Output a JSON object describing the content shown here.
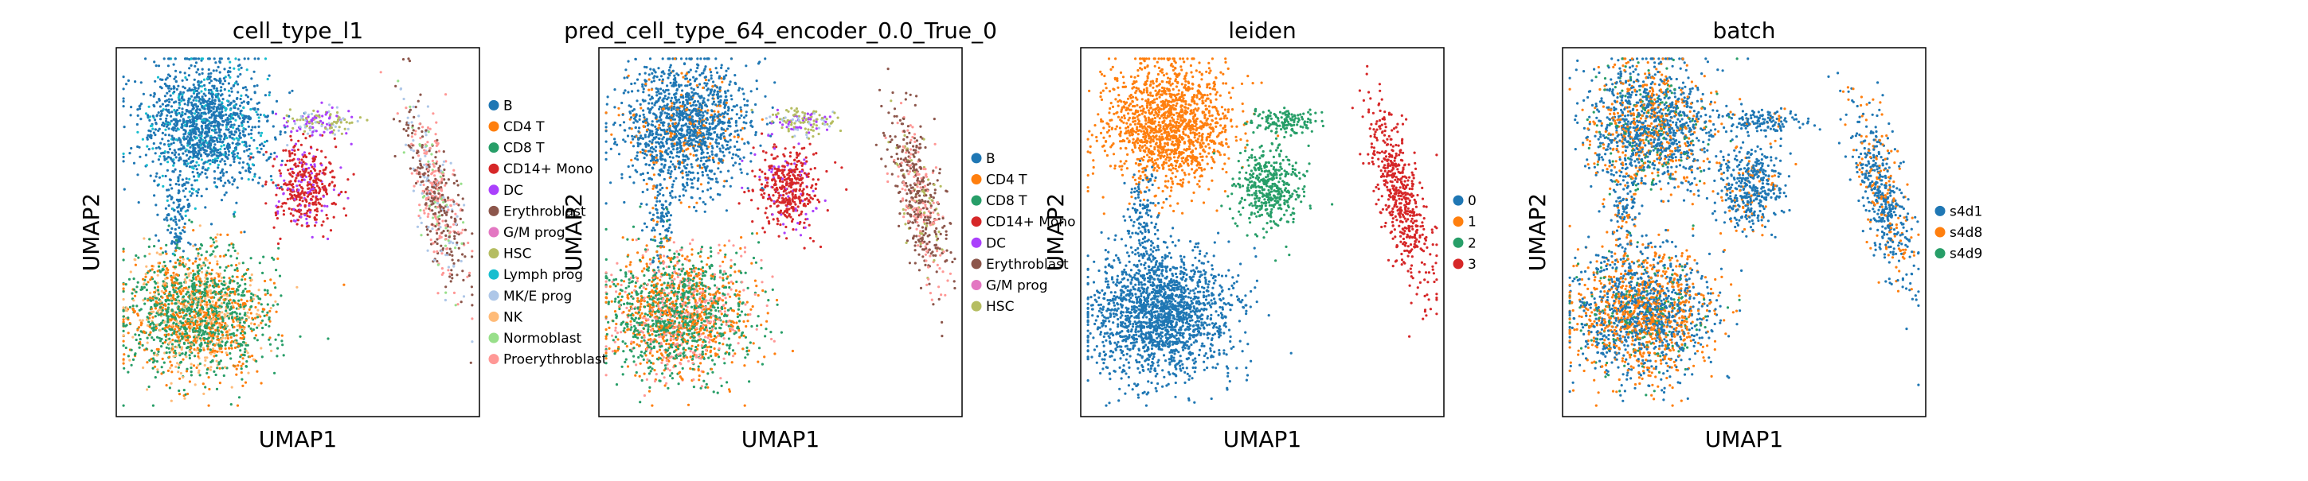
{
  "figure": {
    "panels_count": 4
  },
  "chart_data": [
    {
      "type": "scatter",
      "title": "cell_type_l1",
      "xlabel": "UMAP1",
      "ylabel": "UMAP2",
      "grid": false,
      "legend_placement": "right",
      "legend": [
        {
          "label": "B",
          "color": "#1f77b4"
        },
        {
          "label": "CD4 T",
          "color": "#ff7f0e"
        },
        {
          "label": "CD8 T",
          "color": "#279e68"
        },
        {
          "label": "CD14+ Mono",
          "color": "#d62728"
        },
        {
          "label": "DC",
          "color": "#aa40fc"
        },
        {
          "label": "Erythroblast",
          "color": "#8c564b"
        },
        {
          "label": "G/M prog",
          "color": "#e377c2"
        },
        {
          "label": "HSC",
          "color": "#b5bd61"
        },
        {
          "label": "Lymph prog",
          "color": "#17becf"
        },
        {
          "label": "MK/E prog",
          "color": "#aec7e8"
        },
        {
          "label": "NK",
          "color": "#ffbb78"
        },
        {
          "label": "Normoblast",
          "color": "#98df8a"
        },
        {
          "label": "Proerythroblast",
          "color": "#ff9896"
        }
      ]
    },
    {
      "type": "scatter",
      "title": "pred_cell_type_64_encoder_0.0_True_0",
      "xlabel": "UMAP1",
      "ylabel": "UMAP2",
      "grid": false,
      "legend_placement": "right",
      "legend": [
        {
          "label": "B",
          "color": "#1f77b4"
        },
        {
          "label": "CD4 T",
          "color": "#ff7f0e"
        },
        {
          "label": "CD8 T",
          "color": "#279e68"
        },
        {
          "label": "CD14+ Mono",
          "color": "#d62728"
        },
        {
          "label": "DC",
          "color": "#aa40fc"
        },
        {
          "label": "Erythroblast",
          "color": "#8c564b"
        },
        {
          "label": "G/M prog",
          "color": "#e377c2"
        },
        {
          "label": "HSC",
          "color": "#b5bd61"
        }
      ]
    },
    {
      "type": "scatter",
      "title": "leiden",
      "xlabel": "UMAP1",
      "ylabel": "UMAP2",
      "grid": false,
      "legend_placement": "right",
      "legend": [
        {
          "label": "0",
          "color": "#1f77b4"
        },
        {
          "label": "1",
          "color": "#ff7f0e"
        },
        {
          "label": "2",
          "color": "#279e68"
        },
        {
          "label": "3",
          "color": "#d62728"
        }
      ]
    },
    {
      "type": "scatter",
      "title": "batch",
      "xlabel": "UMAP1",
      "ylabel": "UMAP2",
      "grid": false,
      "legend_placement": "right",
      "legend": [
        {
          "label": "s4d1",
          "color": "#1f77b4"
        },
        {
          "label": "s4d8",
          "color": "#ff7f0e"
        },
        {
          "label": "s4d9",
          "color": "#279e68"
        }
      ]
    }
  ]
}
